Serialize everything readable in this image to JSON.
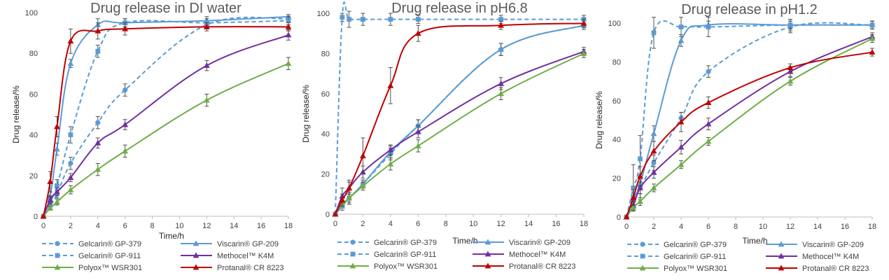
{
  "colors": {
    "Gelcarin® GP-379": "#5B9BD5",
    "Gelcarin® GP-911": "#5B9BD5",
    "Viscarin® GP-209": "#5B9BD5",
    "Methocel™  K4M": "#7030A0",
    "Polyox™ WSR301": "#70AD47",
    "Protanal® CR 8223": "#C00000"
  },
  "styles": {
    "Gelcarin® GP-379": {
      "dash": "dashed",
      "marker": "circle"
    },
    "Gelcarin® GP-911": {
      "dash": "dashed",
      "marker": "square"
    },
    "Viscarin® GP-209": {
      "dash": "solid",
      "marker": "triangle"
    },
    "Methocel™  K4M": {
      "dash": "solid",
      "marker": "triangle"
    },
    "Polyox™ WSR301": {
      "dash": "solid",
      "marker": "triangle"
    },
    "Protanal® CR 8223": {
      "dash": "solid",
      "marker": "triangle"
    }
  },
  "chart_data": [
    {
      "type": "line",
      "title": "Drug release in DI water",
      "xlabel": "Time/h",
      "ylabel": "Drug release/%",
      "xlim": [
        0,
        18
      ],
      "ylim": [
        0,
        100
      ],
      "xticks": [
        0,
        2,
        4,
        6,
        8,
        10,
        12,
        14,
        16,
        18
      ],
      "yticks": [
        0,
        20,
        40,
        60,
        80,
        100
      ],
      "legend_position": "bottom",
      "series": [
        {
          "name": "Gelcarin® GP-379",
          "x": [
            0,
            0.5,
            1,
            2,
            4,
            6,
            12,
            18
          ],
          "y": [
            0,
            5,
            11,
            26,
            46,
            62,
            94,
            97
          ],
          "err": [
            0,
            1.5,
            2,
            3,
            3,
            3,
            2,
            2
          ]
        },
        {
          "name": "Viscarin® GP-209",
          "x": [
            0,
            0.5,
            1,
            2,
            4,
            6,
            12,
            18
          ],
          "y": [
            0,
            10,
            33,
            75,
            94,
            95,
            96,
            98
          ],
          "err": [
            0,
            2,
            3,
            2,
            3,
            2,
            2,
            1
          ]
        },
        {
          "name": "Gelcarin® GP-911",
          "x": [
            0,
            0.5,
            1,
            2,
            4,
            6,
            12,
            18
          ],
          "y": [
            0,
            8,
            15,
            40,
            81,
            95,
            95,
            96
          ],
          "err": [
            0,
            2,
            3,
            4,
            3,
            2,
            2,
            2
          ]
        },
        {
          "name": "Methocel™  K4M",
          "x": [
            0,
            0.5,
            1,
            2,
            4,
            6,
            12,
            18
          ],
          "y": [
            0,
            8,
            12,
            19,
            36,
            45,
            74,
            89
          ],
          "err": [
            0,
            1.5,
            2,
            2,
            2.5,
            2.5,
            2.5,
            2.5
          ]
        },
        {
          "name": "Polyox™ WSR301",
          "x": [
            0,
            0.5,
            1,
            2,
            4,
            6,
            12,
            18
          ],
          "y": [
            0,
            4,
            7,
            13,
            23,
            32,
            57,
            75
          ],
          "err": [
            0,
            1,
            1.5,
            2,
            3,
            3,
            3,
            3
          ]
        },
        {
          "name": "Protanal® CR 8223",
          "x": [
            0,
            0.5,
            1,
            2,
            4,
            6,
            12,
            18
          ],
          "y": [
            0,
            17,
            44,
            86,
            91,
            92,
            93,
            93
          ],
          "err": [
            0,
            5,
            5,
            6,
            4,
            3,
            2,
            2
          ]
        }
      ]
    },
    {
      "type": "line",
      "title": "Drug release in pH6.8",
      "xlabel": "Time/h",
      "ylabel": "Drug release/%",
      "xlim": [
        0,
        18
      ],
      "ylim": [
        0,
        100
      ],
      "xticks": [
        0,
        2,
        4,
        6,
        8,
        10,
        12,
        14,
        16,
        18
      ],
      "yticks": [
        0,
        20,
        40,
        60,
        80,
        100
      ],
      "legend_position": "bottom",
      "series": [
        {
          "name": "Gelcarin® GP-379",
          "x": [
            0,
            0.5,
            1,
            2,
            4,
            6,
            12,
            18
          ],
          "y": [
            0,
            5,
            8,
            15,
            30,
            44,
            82,
            94
          ],
          "err": [
            0,
            2,
            3,
            2,
            3,
            3,
            3,
            2
          ]
        },
        {
          "name": "Viscarin® GP-209",
          "x": [
            0,
            0.5,
            1,
            2,
            4,
            6,
            12,
            18
          ],
          "y": [
            0,
            4,
            8,
            15,
            31,
            44,
            82,
            94
          ],
          "err": [
            0,
            2,
            3,
            2,
            3,
            3,
            3,
            2
          ]
        },
        {
          "name": "Gelcarin® GP-911",
          "x": [
            0,
            0.5,
            1,
            2,
            4,
            6,
            12,
            18
          ],
          "y": [
            0,
            98,
            97,
            97,
            97,
            97,
            97,
            97
          ],
          "err": [
            0,
            2,
            4,
            3,
            3,
            2,
            2,
            2
          ]
        },
        {
          "name": "Methocel™  K4M",
          "x": [
            0,
            0.5,
            1,
            2,
            4,
            6,
            12,
            18
          ],
          "y": [
            0,
            9,
            13,
            21,
            32,
            41,
            65,
            81
          ],
          "err": [
            0,
            4,
            4,
            3,
            2.5,
            3,
            3,
            2
          ]
        },
        {
          "name": "Polyox™ WSR301",
          "x": [
            0,
            0.5,
            1,
            2,
            4,
            6,
            12,
            18
          ],
          "y": [
            0,
            5,
            8,
            14,
            25,
            34,
            60,
            80
          ],
          "err": [
            0,
            1,
            2,
            2,
            3,
            3,
            3,
            2
          ]
        },
        {
          "name": "Protanal® CR 8223",
          "x": [
            0,
            0.5,
            1,
            2,
            4,
            6,
            12,
            18
          ],
          "y": [
            0,
            7,
            13,
            29,
            64,
            90,
            94,
            95
          ],
          "err": [
            0,
            3,
            3,
            9,
            9,
            4,
            2,
            2
          ]
        }
      ]
    },
    {
      "type": "line",
      "title": "Drug release in pH1.2",
      "xlabel": "Time/h",
      "ylabel": "Drug release/%",
      "xlim": [
        0,
        18
      ],
      "ylim": [
        0,
        100
      ],
      "xticks": [
        0,
        2,
        4,
        6,
        8,
        10,
        12,
        14,
        16,
        18
      ],
      "yticks": [
        0,
        20,
        40,
        60,
        80,
        100
      ],
      "legend_position": "bottom",
      "series": [
        {
          "name": "Gelcarin® GP-379",
          "x": [
            0,
            0.5,
            1,
            2,
            4,
            6,
            12,
            18
          ],
          "y": [
            0,
            10,
            15,
            28,
            51,
            75,
            98,
            99
          ],
          "err": [
            0,
            5,
            6,
            4,
            3,
            3,
            3,
            2
          ]
        },
        {
          "name": "Viscarin® GP-209",
          "x": [
            0,
            0.5,
            1,
            2,
            4,
            6,
            12,
            18
          ],
          "y": [
            0,
            9,
            17,
            43,
            91,
            99,
            99,
            99
          ],
          "err": [
            0,
            4,
            5,
            4,
            3,
            2,
            2,
            2
          ]
        },
        {
          "name": "Gelcarin® GP-911",
          "x": [
            0,
            0.5,
            1,
            2,
            4,
            6,
            12,
            18
          ],
          "y": [
            0,
            15,
            30,
            95,
            98,
            98,
            99,
            99
          ],
          "err": [
            0,
            12,
            12,
            8,
            5,
            5,
            3,
            2
          ]
        },
        {
          "name": "Methocel™  K4M",
          "x": [
            0,
            0.5,
            1,
            2,
            4,
            6,
            12,
            18
          ],
          "y": [
            0,
            6,
            15,
            23,
            36,
            48,
            75,
            93
          ],
          "err": [
            0,
            2,
            3,
            3,
            3.5,
            3,
            2.5,
            2
          ]
        },
        {
          "name": "Polyox™ WSR301",
          "x": [
            0,
            0.5,
            1,
            2,
            4,
            6,
            12,
            18
          ],
          "y": [
            0,
            5,
            8,
            15,
            27,
            39,
            70,
            92
          ],
          "err": [
            0,
            1.5,
            2,
            2,
            2,
            2,
            2,
            2
          ]
        },
        {
          "name": "Protanal® CR 8223",
          "x": [
            0,
            0.5,
            1,
            2,
            4,
            6,
            12,
            18
          ],
          "y": [
            0,
            10,
            21,
            34,
            49,
            59,
            77,
            85
          ],
          "err": [
            0,
            4,
            5,
            5,
            5,
            3,
            2,
            2
          ]
        }
      ]
    }
  ],
  "legend": {
    "rows": [
      [
        "Gelcarin® GP-379",
        "Viscarin® GP-209"
      ],
      [
        "Gelcarin® GP-911",
        "Methocel™  K4M"
      ],
      [
        "Polyox™ WSR301",
        "Protanal® CR 8223"
      ]
    ]
  }
}
